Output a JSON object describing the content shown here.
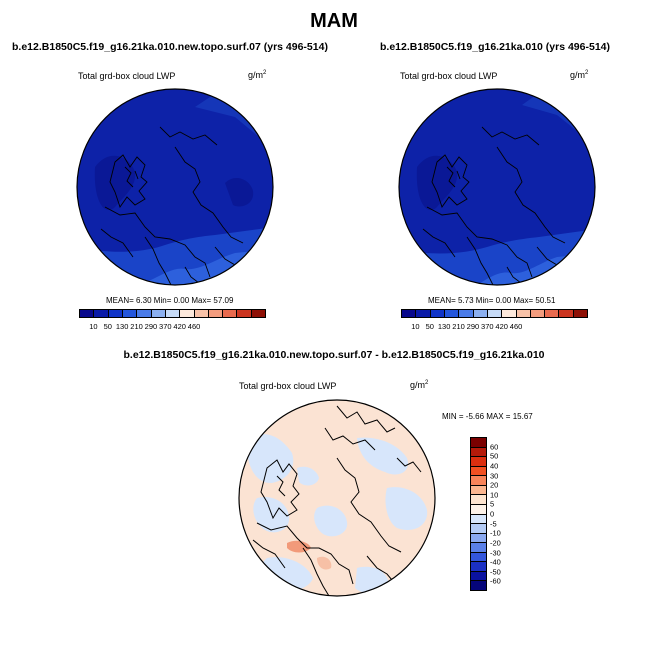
{
  "figure": {
    "title": "MAM"
  },
  "panels": [
    {
      "title": "b.e12.B1850C5.f19_g16.21ka.010.new.topo.surf.07 (yrs 496-514)",
      "variable": "Total grd-box cloud LWP",
      "units": "g/m",
      "units_exp": "2",
      "stats": "MEAN=  6.30  Min=   0.00  Max=  57.09",
      "colorbar": {
        "colors": [
          "#08088c",
          "#0a1aa8",
          "#1034c8",
          "#2456dc",
          "#4a7be8",
          "#8cb0f0",
          "#c7dbf7",
          "#fde9dc",
          "#f8c2a8",
          "#f39c7e",
          "#e96a4e",
          "#cc3520",
          "#8e1006"
        ],
        "tick_labels": [
          "10",
          "50",
          "130",
          "210",
          "290",
          "370",
          "420",
          "460"
        ]
      }
    },
    {
      "title": "b.e12.B1850C5.f19_g16.21ka.010 (yrs 496-514)",
      "variable": "Total grd-box cloud LWP",
      "units": "g/m",
      "units_exp": "2",
      "stats": "MEAN=  5.73  Min=   0.00  Max=  50.51",
      "colorbar": {
        "colors": [
          "#08088c",
          "#0a1aa8",
          "#1034c8",
          "#2456dc",
          "#4a7be8",
          "#8cb0f0",
          "#c7dbf7",
          "#fde9dc",
          "#f8c2a8",
          "#f39c7e",
          "#e96a4e",
          "#cc3520",
          "#8e1006"
        ],
        "tick_labels": [
          "10",
          "50",
          "130",
          "210",
          "290",
          "370",
          "420",
          "460"
        ]
      }
    },
    {
      "title": "b.e12.B1850C5.f19_g16.21ka.010.new.topo.surf.07 - b.e12.B1850C5.f19_g16.21ka.010",
      "variable": "Total grd-box cloud LWP",
      "units": "g/m",
      "units_exp": "2",
      "stats": "MIN = -5.66 MAX = 15.67",
      "colorbar": {
        "colors": [
          "#7a0000",
          "#b51a0a",
          "#dc2f10",
          "#f25022",
          "#f8845a",
          "#fbb690",
          "#fde4cf",
          "#fdf2e8",
          "#d7e6fb",
          "#b4ccf6",
          "#8aa9f1",
          "#5a80e8",
          "#3356dc",
          "#1b30c4",
          "#0a12a0",
          "#05057a"
        ],
        "tick_labels": [
          "60",
          "50",
          "40",
          "30",
          "20",
          "10",
          "5",
          "0",
          "-5",
          "-10",
          "-20",
          "-30",
          "-40",
          "-50",
          "-60"
        ]
      }
    }
  ]
}
